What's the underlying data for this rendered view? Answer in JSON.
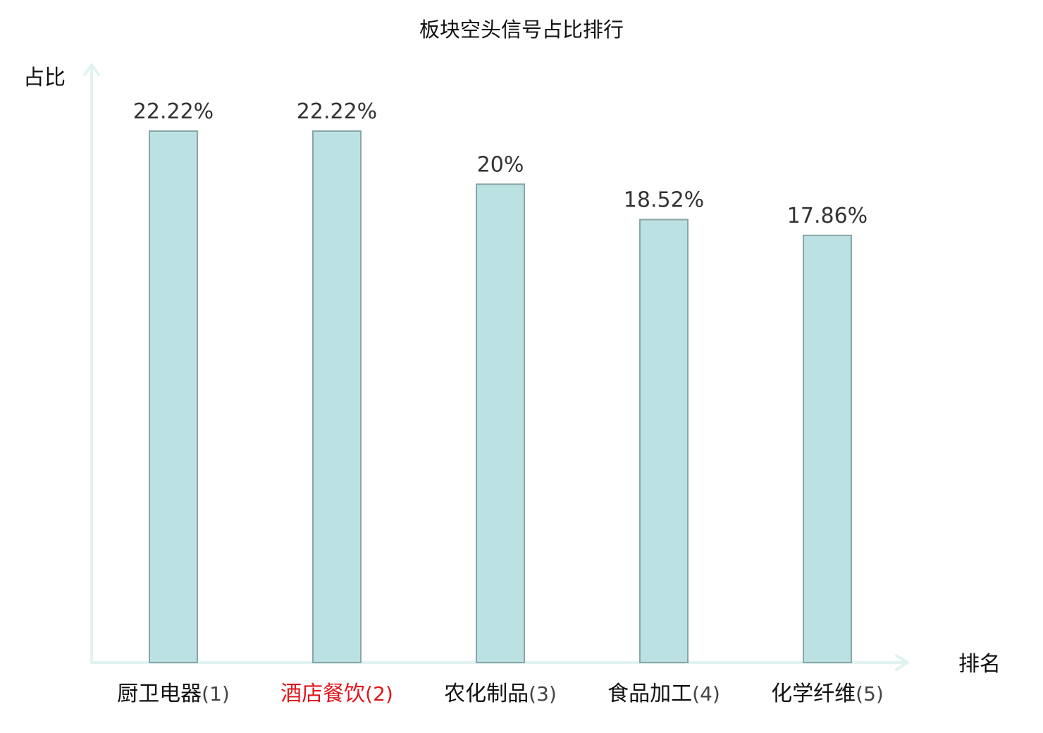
{
  "chart_data": {
    "type": "bar",
    "title": "板块空头信号占比排行",
    "xlabel": "排名",
    "ylabel": "占比",
    "categories": [
      "厨卫电器",
      "酒店餐饮",
      "农化制品",
      "食品加工",
      "化学纤维"
    ],
    "ranks": [
      "(1)",
      "(2)",
      "(3)",
      "(4)",
      "(5)"
    ],
    "values": [
      22.22,
      22.22,
      20,
      18.52,
      17.86
    ],
    "value_labels": [
      "22.22%",
      "22.22%",
      "20%",
      "18.52%",
      "17.86%"
    ],
    "highlight_index": 1,
    "ylim": [
      0,
      25
    ],
    "grid": false,
    "legend": "none"
  },
  "colors": {
    "bar_fill": "#bce1e2",
    "bar_stroke": "#8aa5a6",
    "axis": "#e1f3f1",
    "label_default": "#111111",
    "rank_default": "#444444",
    "highlight": "#e0161b"
  }
}
